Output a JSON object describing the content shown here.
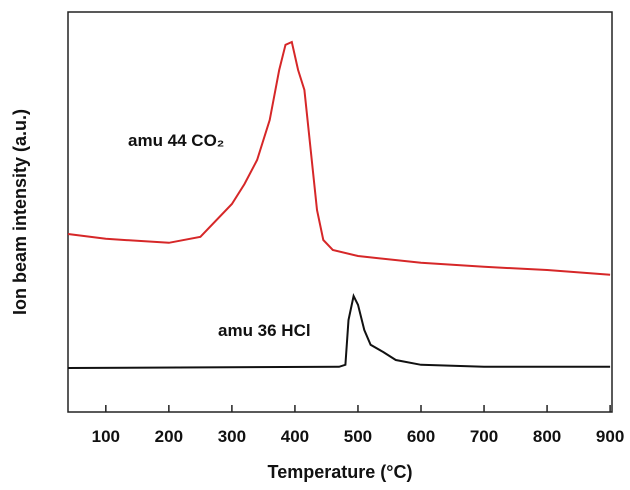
{
  "chart_data": {
    "type": "line",
    "x_label": "Temperature (°C)",
    "y_label": "Ion beam intensity (a.u.)",
    "xlim": [
      40,
      903
    ],
    "ylim": [
      0,
      100
    ],
    "xticks": [
      100,
      200,
      300,
      400,
      500,
      600,
      700,
      800,
      900
    ],
    "grid": false,
    "series": [
      {
        "name": "amu 44 CO₂",
        "color": "#d62728",
        "x": [
          40,
          100,
          200,
          250,
          300,
          320,
          340,
          360,
          375,
          385,
          395,
          405,
          415,
          425,
          435,
          445,
          460,
          500,
          600,
          700,
          800,
          900
        ],
        "values": [
          44.5,
          43.3,
          42.3,
          43.8,
          52,
          57,
          63,
          73,
          85.5,
          91.8,
          92.5,
          85.5,
          80.5,
          65.5,
          50.5,
          43,
          40.5,
          39,
          37.3,
          36.3,
          35.5,
          34.3
        ]
      },
      {
        "name": "amu 36 HCl",
        "color": "#111111",
        "x": [
          40,
          470,
          480,
          485,
          493,
          500,
          510,
          520,
          540,
          560,
          600,
          700,
          900
        ],
        "values": [
          11,
          11.3,
          11.8,
          23,
          29,
          26.8,
          20.5,
          16.8,
          15,
          13,
          11.8,
          11.3,
          11.3
        ]
      }
    ]
  }
}
